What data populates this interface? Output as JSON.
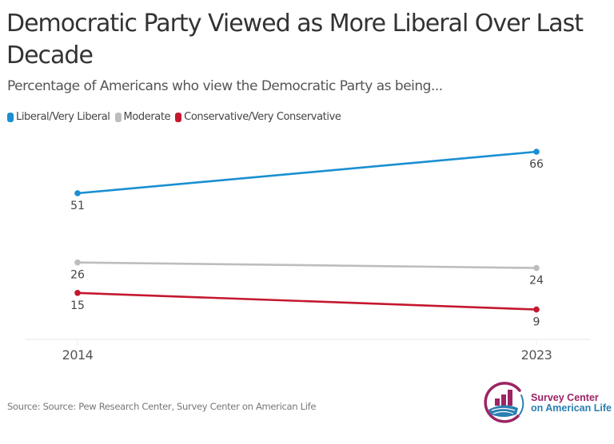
{
  "header": {
    "title": "Democratic Party Viewed as More Liberal Over Last Decade",
    "subtitle": "Percentage of Americans who view the Democratic Party as being..."
  },
  "legend": [
    {
      "label": "Liberal/Very Liberal",
      "color": "#1a8fd1"
    },
    {
      "label": "Moderate",
      "color": "#bdbdbd"
    },
    {
      "label": "Conservative/Very Conservative",
      "color": "#c4182f"
    }
  ],
  "chart_data": {
    "type": "line",
    "title": "Democratic Party Viewed as More Liberal Over Last Decade",
    "subtitle": "Percentage of Americans who view the Democratic Party as being...",
    "xlabel": "",
    "ylabel": "",
    "x": [
      "2014",
      "2023"
    ],
    "ylim": [
      -2,
      70
    ],
    "grid": false,
    "legend_position": "top-left",
    "series": [
      {
        "name": "Liberal/Very Liberal",
        "color": "#1a8fd1",
        "values": [
          51,
          66
        ],
        "label_position": [
          "below",
          "below"
        ]
      },
      {
        "name": "Moderate",
        "color": "#bdbdbd",
        "values": [
          26,
          24
        ],
        "label_position": [
          "below",
          "below"
        ]
      },
      {
        "name": "Conservative/Very Conservative",
        "color": "#c4182f",
        "values": [
          15,
          9
        ],
        "label_position": [
          "below",
          "below"
        ]
      }
    ]
  },
  "footer": {
    "source": "Source: Source: Pew Research Center, Survey Center on American Life",
    "logo_line1": "Survey Center",
    "logo_line2": "on American Life"
  }
}
